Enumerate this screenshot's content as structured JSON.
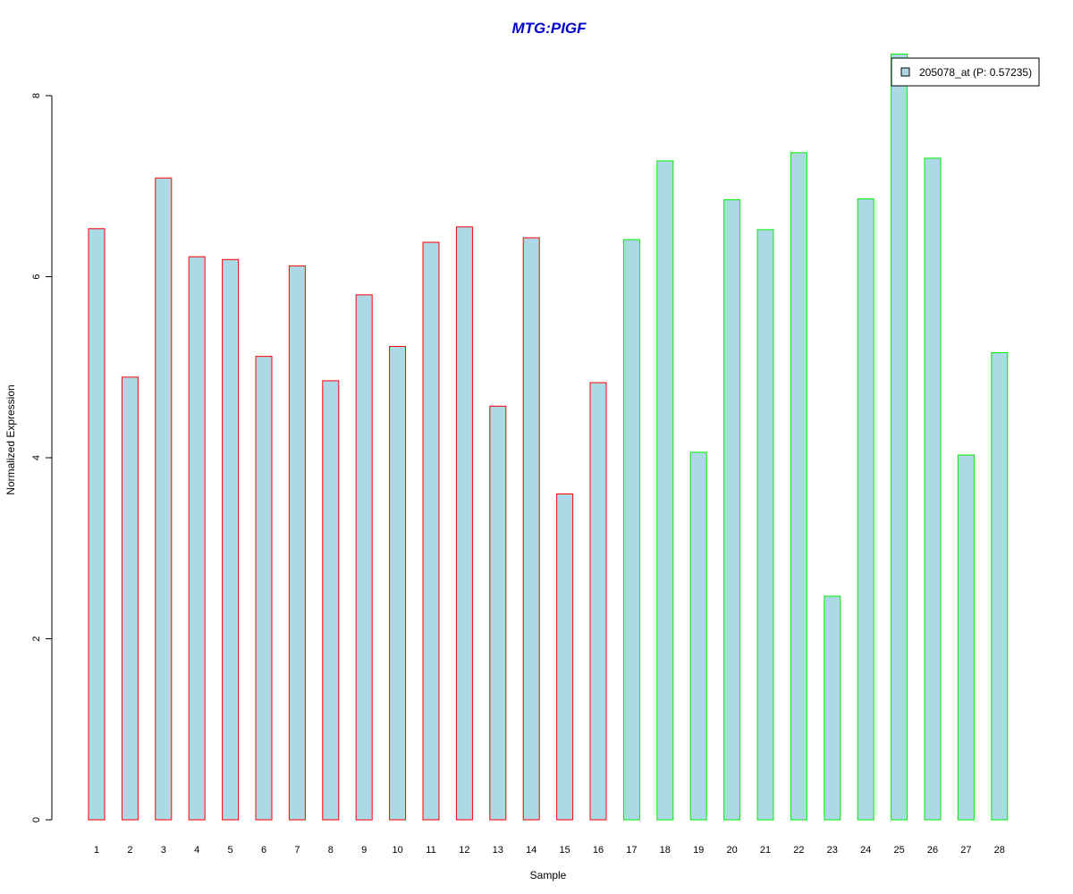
{
  "chart_data": {
    "type": "bar",
    "title": "MTG:PIGF",
    "xlabel": "Sample",
    "ylabel": "Normalized Expression",
    "categories": [
      "1",
      "2",
      "3",
      "4",
      "5",
      "6",
      "7",
      "8",
      "9",
      "10",
      "11",
      "12",
      "13",
      "14",
      "15",
      "16",
      "17",
      "18",
      "19",
      "20",
      "21",
      "22",
      "23",
      "24",
      "25",
      "26",
      "27",
      "28"
    ],
    "values": [
      6.53,
      4.89,
      7.09,
      6.22,
      6.19,
      5.12,
      6.12,
      4.85,
      5.8,
      5.23,
      6.38,
      6.55,
      4.57,
      6.43,
      3.6,
      4.83,
      6.41,
      7.28,
      4.06,
      6.85,
      6.52,
      7.37,
      2.47,
      6.86,
      8.46,
      7.31,
      4.03,
      5.16
    ],
    "bar_fill": "#add8e6",
    "group_border_colors": [
      "#ff0000",
      "#ff0000",
      "#ff0000",
      "#ff0000",
      "#ff0000",
      "#ff0000",
      "#ff0000",
      "#ff0000",
      "#ff0000",
      "#ff0000",
      "#ff0000",
      "#ff0000",
      "#ff0000",
      "#ff0000",
      "#ff0000",
      "#ff0000",
      "#00ee00",
      "#00ee00",
      "#00ee00",
      "#00ee00",
      "#00ee00",
      "#00ee00",
      "#00ee00",
      "#00ee00",
      "#00ee00",
      "#00ee00",
      "#00ee00",
      "#00ee00"
    ],
    "title_color": "#0000cc",
    "yticks": [
      0,
      2,
      4,
      6,
      8
    ],
    "ylim": [
      0,
      8.5
    ],
    "grid": false,
    "legend": {
      "entries": [
        {
          "label": "205078_at (P: 0.57235)",
          "fill": "#add8e6"
        }
      ],
      "placement": "top-right"
    }
  }
}
